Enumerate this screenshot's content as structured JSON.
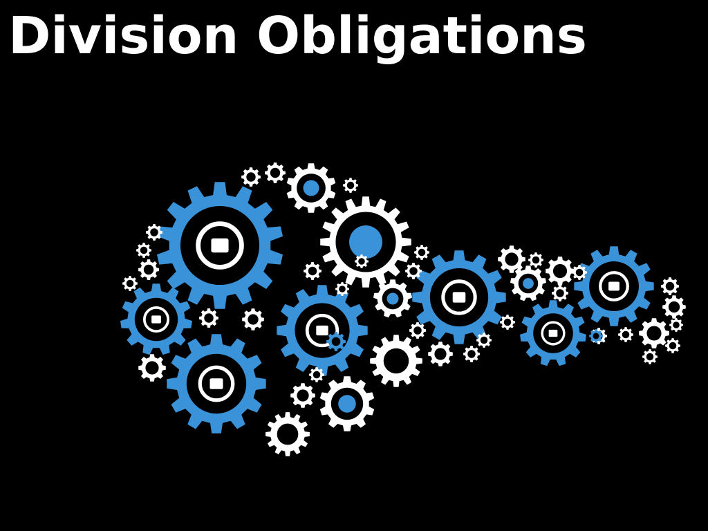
{
  "slide": {
    "title": "Division Obligations"
  },
  "colors": {
    "background": "#000000",
    "gear_blue": "#3a93d8",
    "gear_white": "#ffffff",
    "hub_black": "#000000",
    "title_text": "#ffffff"
  },
  "illustration": {
    "large_blue_gears": [
      {
        "icon": "head-analytics-icon"
      },
      {
        "icon": "money-stack-icon"
      },
      {
        "icon": "globe-gear-icon"
      },
      {
        "icon": "pentagon-icon"
      },
      {
        "icon": "binoculars-icon"
      },
      {
        "icon": "lightbulb-check-icon"
      },
      {
        "icon": "person-compass-icon"
      }
    ],
    "white_gears": [
      {
        "icon": "coins-growth-icon"
      },
      {
        "icon": "dollar-click-icon"
      },
      {
        "icon": "signpost-icon"
      },
      {
        "icon": "chess-rook-icon"
      },
      {
        "icon": "team-network-icon"
      }
    ]
  }
}
